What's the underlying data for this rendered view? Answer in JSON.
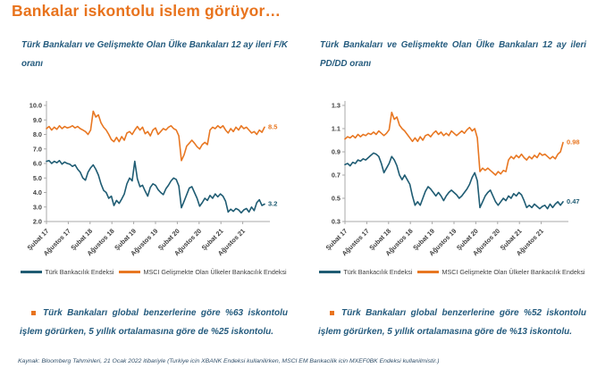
{
  "title": "Bankalar iskontolu islem görüyor…",
  "panels": [
    {
      "subtitle": "Türk Bankaları ve Gelişmekte Olan Ülke Bankaları 12 ay ileri F/K oranı",
      "bullet": "Türk Bankaları global benzerlerine göre %63 iskontolu işlem görürken, 5 yıllık ortalamasına göre de %25 iskontolu."
    },
    {
      "subtitle": "Türk Bankaları ve Gelişmekte Olan Ülke Bankaları 12 ay ileri PD/DD oranı",
      "bullet": "Türk Bankaları global benzerlerine göre %52 iskontolu işlem görürken, 5 yıllık ortalamasına göre de %13 iskontolu."
    }
  ],
  "legend": [
    {
      "label": "Türk Bankacılık Endeksi",
      "color": "turk"
    },
    {
      "label": "MSCI Gelişmekte Olan Ülkeler Bankacılık Endeksi",
      "color": "msci"
    }
  ],
  "footnote": "Kaynak: Bloomberg Tahminleri, 21 Ocak 2022  itibariyle (Turkiye icin XBANK Endeksi kullanilirken, MSCI EM Bankacilik icin MXEF0BK Endeksi kullanilmistir.)",
  "colors": {
    "title": "#E8731D",
    "text": "#235A7D",
    "turk": "#1F5C73",
    "msci": "#E87722",
    "axis": "#A8A8A8",
    "tick_text": "#3F3F3F"
  },
  "chart_data": [
    {
      "type": "line",
      "title": "Türk Bankaları ve Gelişmekte Olan Ülke Bankaları 12 ay ileri F/K oranı",
      "xlabel": "",
      "ylabel": "",
      "grid": false,
      "legend_position": "bottom",
      "y_min": 2.0,
      "y_max": 10.0,
      "y_ticks": [
        2.0,
        3.0,
        4.0,
        5.0,
        6.0,
        7.0,
        8.0,
        9.0,
        10.0
      ],
      "y_tick_decimals": 1,
      "x_ticks": [
        "Şubat 17",
        "Ağustos 17",
        "Şubat 18",
        "Ağustos 18",
        "Şubat 19",
        "Ağustos 19",
        "Şubat 20",
        "Ağustos 20",
        "Şubat 21",
        "Ağustos 21"
      ],
      "series": [
        {
          "name": "Türk Bankacılık Endeksi",
          "color": "turk",
          "values": [
            6.15,
            6.2,
            6.0,
            6.15,
            6.05,
            6.2,
            5.95,
            6.1,
            6.0,
            5.95,
            5.8,
            5.9,
            5.6,
            5.4,
            5.0,
            4.85,
            5.4,
            5.7,
            5.9,
            5.6,
            5.2,
            4.6,
            4.15,
            4.0,
            3.6,
            3.75,
            3.1,
            3.45,
            3.25,
            3.55,
            3.9,
            4.6,
            5.0,
            4.8,
            6.15,
            4.95,
            4.4,
            4.5,
            4.1,
            3.75,
            4.35,
            4.6,
            4.5,
            4.2,
            4.0,
            3.85,
            4.25,
            4.5,
            4.8,
            5.0,
            4.9,
            4.45,
            2.95,
            3.4,
            3.85,
            4.3,
            4.4,
            4.0,
            3.6,
            3.05,
            3.3,
            3.6,
            3.45,
            3.8,
            3.6,
            3.9,
            3.7,
            3.9,
            3.75,
            3.4,
            2.65,
            2.85,
            2.7,
            2.9,
            2.8,
            2.6,
            2.8,
            2.9,
            2.65,
            3.0,
            2.75,
            3.3,
            3.5,
            3.1,
            3.2
          ]
        },
        {
          "name": "MSCI Gelişmekte Olan Ülkeler Bankacılık Endeksi",
          "color": "msci",
          "values": [
            8.4,
            8.55,
            8.3,
            8.5,
            8.35,
            8.6,
            8.4,
            8.55,
            8.45,
            8.5,
            8.6,
            8.45,
            8.55,
            8.4,
            8.3,
            8.2,
            8.0,
            8.3,
            9.6,
            9.2,
            9.35,
            8.8,
            8.5,
            8.3,
            8.0,
            7.65,
            7.5,
            7.8,
            7.5,
            7.85,
            7.6,
            8.1,
            8.2,
            8.0,
            8.3,
            8.55,
            8.3,
            8.5,
            8.05,
            8.2,
            7.9,
            8.3,
            8.45,
            8.0,
            8.2,
            8.4,
            8.3,
            8.5,
            8.6,
            8.4,
            8.3,
            7.9,
            6.2,
            6.6,
            7.2,
            7.4,
            7.6,
            7.4,
            7.15,
            7.0,
            7.3,
            7.45,
            7.3,
            8.3,
            8.5,
            8.4,
            8.6,
            8.45,
            8.6,
            8.3,
            8.1,
            8.4,
            8.2,
            8.5,
            8.3,
            8.6,
            8.4,
            8.5,
            8.3,
            8.1,
            8.2,
            8.0,
            8.3,
            8.15,
            8.5
          ]
        }
      ],
      "end_labels": [
        {
          "text": "8.5",
          "value": 8.5,
          "series": "msci"
        },
        {
          "text": "3.2",
          "value": 3.2,
          "series": "turk"
        }
      ]
    },
    {
      "type": "line",
      "title": "Türk Bankaları ve Gelişmekte Olan Ülke Bankaları 12 ay ileri PD/DD oranı",
      "xlabel": "",
      "ylabel": "",
      "grid": false,
      "legend_position": "bottom",
      "y_min": 0.3,
      "y_max": 1.3,
      "y_ticks": [
        0.3,
        0.5,
        0.7,
        0.9,
        1.1,
        1.3
      ],
      "y_tick_decimals": 1,
      "x_ticks": [
        "Şubat 17",
        "Ağustos 17",
        "Şubat 18",
        "Ağustos 18",
        "Şubat 19",
        "Ağustos 19",
        "Şubat 20",
        "Ağustos 20",
        "Şubat 21",
        "Ağustos 21"
      ],
      "series": [
        {
          "name": "Türk Bankacılık Endeksi",
          "color": "turk",
          "values": [
            0.79,
            0.8,
            0.78,
            0.81,
            0.8,
            0.83,
            0.82,
            0.84,
            0.83,
            0.85,
            0.87,
            0.89,
            0.88,
            0.86,
            0.8,
            0.72,
            0.76,
            0.8,
            0.86,
            0.83,
            0.78,
            0.7,
            0.66,
            0.7,
            0.66,
            0.62,
            0.52,
            0.44,
            0.47,
            0.44,
            0.5,
            0.56,
            0.6,
            0.58,
            0.55,
            0.52,
            0.55,
            0.52,
            0.48,
            0.52,
            0.55,
            0.57,
            0.55,
            0.53,
            0.5,
            0.52,
            0.55,
            0.58,
            0.62,
            0.68,
            0.72,
            0.65,
            0.42,
            0.47,
            0.52,
            0.55,
            0.57,
            0.52,
            0.47,
            0.44,
            0.47,
            0.5,
            0.48,
            0.52,
            0.5,
            0.54,
            0.52,
            0.55,
            0.53,
            0.48,
            0.42,
            0.44,
            0.42,
            0.45,
            0.43,
            0.41,
            0.43,
            0.44,
            0.41,
            0.45,
            0.42,
            0.45,
            0.47,
            0.44,
            0.47
          ]
        },
        {
          "name": "MSCI Gelişmekte Olan Ülkeler Bankacılık Endeksi",
          "color": "msci",
          "values": [
            1.01,
            1.03,
            1.02,
            1.04,
            1.02,
            1.05,
            1.03,
            1.05,
            1.04,
            1.06,
            1.05,
            1.07,
            1.05,
            1.08,
            1.06,
            1.04,
            1.06,
            1.09,
            1.24,
            1.18,
            1.2,
            1.13,
            1.1,
            1.08,
            1.05,
            1.02,
            0.99,
            1.02,
            0.99,
            1.03,
            1.0,
            1.04,
            1.05,
            1.03,
            1.06,
            1.08,
            1.05,
            1.07,
            1.04,
            1.06,
            1.04,
            1.08,
            1.06,
            1.04,
            1.06,
            1.08,
            1.06,
            1.09,
            1.11,
            1.08,
            1.1,
            1.02,
            0.73,
            0.76,
            0.74,
            0.76,
            0.74,
            0.72,
            0.7,
            0.73,
            0.71,
            0.74,
            0.73,
            0.83,
            0.86,
            0.84,
            0.87,
            0.85,
            0.88,
            0.85,
            0.83,
            0.86,
            0.84,
            0.87,
            0.85,
            0.89,
            0.87,
            0.88,
            0.86,
            0.84,
            0.86,
            0.84,
            0.88,
            0.9,
            0.98
          ]
        }
      ],
      "end_labels": [
        {
          "text": "0.98",
          "value": 0.98,
          "series": "msci"
        },
        {
          "text": "0.47",
          "value": 0.47,
          "series": "turk"
        }
      ]
    }
  ]
}
